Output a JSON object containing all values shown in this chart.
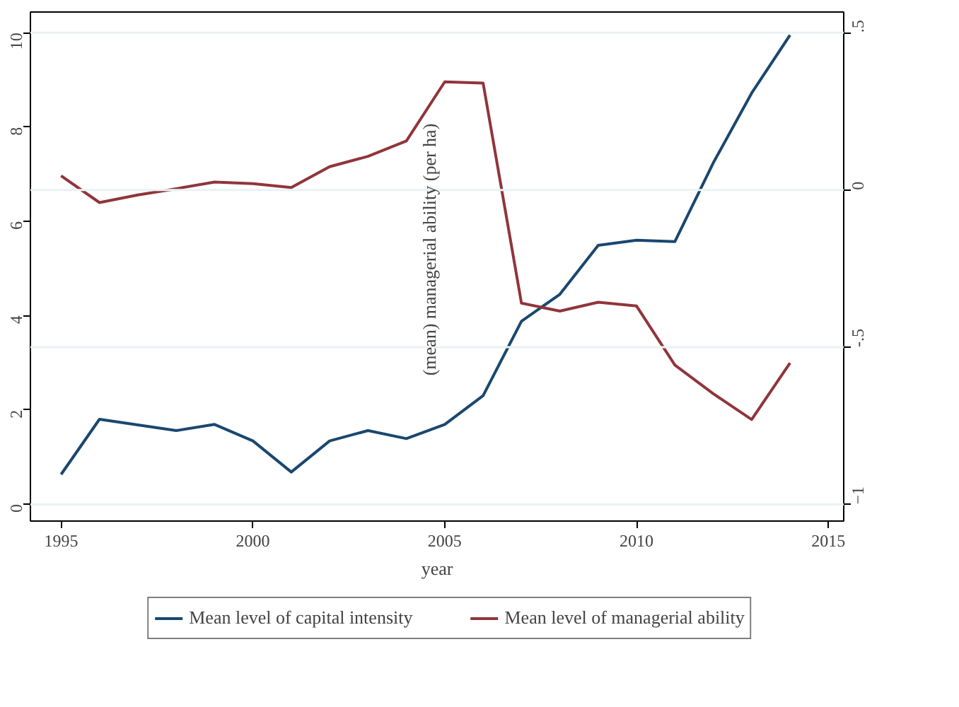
{
  "chart_data": {
    "type": "line",
    "xlabel": "year",
    "annotations": [
      "(mean) managerial ability (per ha)"
    ],
    "x": [
      1995,
      1996,
      1997,
      1998,
      1999,
      2000,
      2001,
      2002,
      2003,
      2004,
      2005,
      2006,
      2007,
      2008,
      2009,
      2010,
      2011,
      2012,
      2013,
      2014
    ],
    "series": [
      {
        "name": "Mean level of capital intensity",
        "color": "#1a476f",
        "values": [
          0.63,
          1.8,
          1.68,
          1.56,
          1.69,
          1.34,
          0.68,
          1.34,
          1.56,
          1.39,
          1.69,
          2.3,
          3.88,
          4.45,
          5.49,
          5.6,
          5.57,
          7.24,
          8.72,
          9.95
        ]
      },
      {
        "name": "Mean level of managerial ability",
        "color": "#90353b",
        "axis": "y2",
        "values": [
          0.045,
          -0.04,
          -0.016,
          0.004,
          0.025,
          0.02,
          0.008,
          0.074,
          0.107,
          0.156,
          0.344,
          0.34,
          -0.36,
          -0.385,
          -0.357,
          -0.369,
          -0.557,
          -0.648,
          -0.73,
          -0.55
        ]
      }
    ],
    "xlim": [
      1994.2,
      2015.4
    ],
    "xticks": [
      1995,
      2000,
      2005,
      2010,
      2015
    ],
    "ylim": [
      -0.36,
      10.44
    ],
    "yticks": [
      0,
      2,
      4,
      6,
      8,
      10
    ],
    "y2lim": [
      -1.053,
      0.566
    ],
    "y2ticks": [
      {
        "value": 0.5,
        "label": ".5"
      },
      0,
      {
        "value": -0.5,
        "label": "-.5"
      },
      -1
    ],
    "grid": "y2",
    "legend": "bottom",
    "line_style": "solid",
    "marker": "none"
  }
}
